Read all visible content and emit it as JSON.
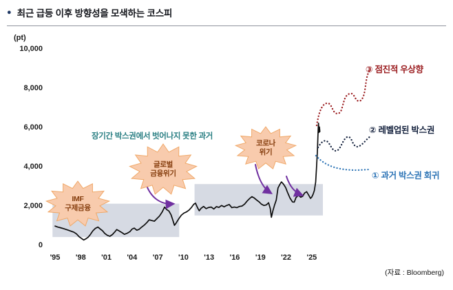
{
  "header": {
    "bullet": "●",
    "title": "최근 급등 이후 방향성을 모색하는 코스피"
  },
  "chart": {
    "unit_label": "(pt)",
    "y_ticks": [
      "10,000",
      "8,000",
      "6,000",
      "4,000",
      "2,000",
      "0"
    ],
    "x_ticks": [
      "'95",
      "'98",
      "'01",
      "'04",
      "'07",
      "'10",
      "'13",
      "'16",
      "'19",
      "'22",
      "'25"
    ],
    "source": "(자료 : Bloomberg)"
  },
  "annotations": {
    "box_note": "장기간 박스권에서 벗어나지 못한 과거",
    "starbursts": [
      {
        "id": "imf",
        "label": "IMF\n구제금융"
      },
      {
        "id": "gfc",
        "label": "글로벌\n금융위기"
      },
      {
        "id": "covid",
        "label": "코로나\n위기"
      }
    ],
    "scenarios": [
      {
        "number": "③",
        "label": "③ 점진적 우상향",
        "color": "#9a1b1e"
      },
      {
        "number": "②",
        "label": "② 레벨업된 박스권",
        "color": "#14213d"
      },
      {
        "number": "①",
        "label": "① 과거 박스권 회귀",
        "color": "#2e75b6"
      }
    ],
    "arrow_color": "#7030a0",
    "starburst_fill": "#f8cbad"
  },
  "chart_data": {
    "type": "line",
    "title": "최근 급등 이후 방향성을 모색하는 코스피",
    "xlabel": "",
    "ylabel": "(pt)",
    "ylim": [
      0,
      10000
    ],
    "xlim": [
      1994.5,
      2026.5
    ],
    "grid": false,
    "legend": "none",
    "y_tick_values": [
      10000,
      8000,
      6000,
      4000,
      2000,
      0
    ],
    "x_tick_years": [
      1995,
      1998,
      2001,
      2004,
      2007,
      2010,
      2013,
      2016,
      2019,
      2022,
      2025
    ],
    "series": [
      {
        "name": "KOSPI",
        "points": [
          [
            1995.0,
            1010
          ],
          [
            1995.3,
            960
          ],
          [
            1995.6,
            930
          ],
          [
            1996.0,
            880
          ],
          [
            1996.4,
            820
          ],
          [
            1996.8,
            760
          ],
          [
            1997.2,
            700
          ],
          [
            1997.5,
            610
          ],
          [
            1997.8,
            470
          ],
          [
            1998.1,
            380
          ],
          [
            1998.35,
            300
          ],
          [
            1998.6,
            360
          ],
          [
            1998.85,
            440
          ],
          [
            1999.1,
            570
          ],
          [
            1999.4,
            760
          ],
          [
            1999.7,
            890
          ],
          [
            2000.0,
            960
          ],
          [
            2000.25,
            870
          ],
          [
            2000.55,
            770
          ],
          [
            2000.8,
            640
          ],
          [
            2001.1,
            540
          ],
          [
            2001.4,
            490
          ],
          [
            2001.7,
            580
          ],
          [
            2001.95,
            700
          ],
          [
            2002.2,
            830
          ],
          [
            2002.5,
            760
          ],
          [
            2002.8,
            680
          ],
          [
            2003.1,
            590
          ],
          [
            2003.45,
            650
          ],
          [
            2003.75,
            730
          ],
          [
            2004.0,
            860
          ],
          [
            2004.25,
            910
          ],
          [
            2004.55,
            800
          ],
          [
            2004.8,
            840
          ],
          [
            2005.1,
            950
          ],
          [
            2005.45,
            1070
          ],
          [
            2005.75,
            1200
          ],
          [
            2006.0,
            1330
          ],
          [
            2006.3,
            1290
          ],
          [
            2006.6,
            1260
          ],
          [
            2006.9,
            1390
          ],
          [
            2007.2,
            1520
          ],
          [
            2007.5,
            1720
          ],
          [
            2007.8,
            1980
          ],
          [
            2008.05,
            1850
          ],
          [
            2008.3,
            1780
          ],
          [
            2008.55,
            1590
          ],
          [
            2008.75,
            1330
          ],
          [
            2008.95,
            1050
          ],
          [
            2009.15,
            1170
          ],
          [
            2009.45,
            1380
          ],
          [
            2009.75,
            1560
          ],
          [
            2010.05,
            1670
          ],
          [
            2010.35,
            1730
          ],
          [
            2010.65,
            1820
          ],
          [
            2010.95,
            1970
          ],
          [
            2011.2,
            2120
          ],
          [
            2011.4,
            2180
          ],
          [
            2011.65,
            1940
          ],
          [
            2011.85,
            1790
          ],
          [
            2012.05,
            1910
          ],
          [
            2012.35,
            2010
          ],
          [
            2012.65,
            1900
          ],
          [
            2012.95,
            1960
          ],
          [
            2013.25,
            1980
          ],
          [
            2013.55,
            1880
          ],
          [
            2013.85,
            2000
          ],
          [
            2014.15,
            1960
          ],
          [
            2014.45,
            2060
          ],
          [
            2014.75,
            1990
          ],
          [
            2015.05,
            2060
          ],
          [
            2015.35,
            2110
          ],
          [
            2015.65,
            1950
          ],
          [
            2015.95,
            1980
          ],
          [
            2016.25,
            1950
          ],
          [
            2016.55,
            2010
          ],
          [
            2016.85,
            2030
          ],
          [
            2017.15,
            2130
          ],
          [
            2017.45,
            2290
          ],
          [
            2017.75,
            2420
          ],
          [
            2018.0,
            2510
          ],
          [
            2018.25,
            2450
          ],
          [
            2018.55,
            2340
          ],
          [
            2018.85,
            2240
          ],
          [
            2019.1,
            2130
          ],
          [
            2019.4,
            2060
          ],
          [
            2019.7,
            2090
          ],
          [
            2019.95,
            2200
          ],
          [
            2020.15,
            1900
          ],
          [
            2020.28,
            1460
          ],
          [
            2020.45,
            1780
          ],
          [
            2020.65,
            2080
          ],
          [
            2020.85,
            2340
          ],
          [
            2021.05,
            2950
          ],
          [
            2021.25,
            3120
          ],
          [
            2021.45,
            3260
          ],
          [
            2021.7,
            3140
          ],
          [
            2021.95,
            2970
          ],
          [
            2022.15,
            2740
          ],
          [
            2022.45,
            2440
          ],
          [
            2022.75,
            2240
          ],
          [
            2022.95,
            2230
          ],
          [
            2023.15,
            2460
          ],
          [
            2023.45,
            2580
          ],
          [
            2023.7,
            2480
          ],
          [
            2023.95,
            2530
          ],
          [
            2024.15,
            2690
          ],
          [
            2024.4,
            2760
          ],
          [
            2024.65,
            2580
          ],
          [
            2024.85,
            2420
          ],
          [
            2025.0,
            2490
          ],
          [
            2025.15,
            2630
          ],
          [
            2025.3,
            2820
          ],
          [
            2025.45,
            3250
          ],
          [
            2025.55,
            3950
          ],
          [
            2025.65,
            4800
          ],
          [
            2025.72,
            5600
          ],
          [
            2025.78,
            6250
          ],
          [
            2025.84,
            5780
          ],
          [
            2025.89,
            6060
          ],
          [
            2025.94,
            5820
          ]
        ]
      }
    ],
    "box_ranges": [
      {
        "x_start": 1994.7,
        "x_end": 2009.5,
        "y_low": 450,
        "y_high": 2150
      },
      {
        "x_start": 2011.3,
        "x_end": 2026.3,
        "y_low": 1550,
        "y_high": 3150
      }
    ]
  }
}
